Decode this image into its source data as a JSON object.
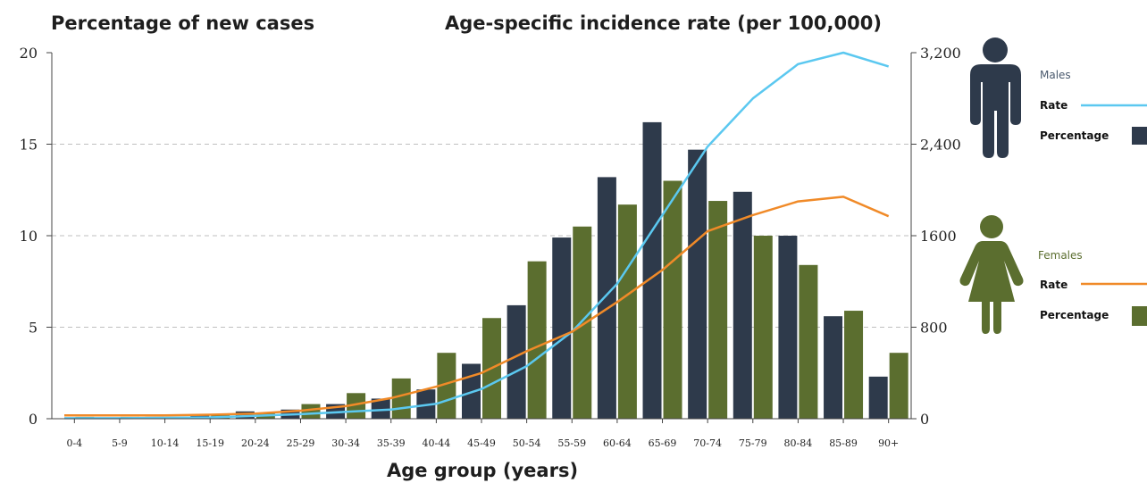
{
  "chart_data": {
    "type": "bar",
    "title_left": "Percentage of new cases",
    "title_right": "Age-specific incidence rate (per 100,000)",
    "xlabel": "Age group (years)",
    "categories": [
      "0-4",
      "5-9",
      "10-14",
      "15-19",
      "20-24",
      "25-29",
      "30-34",
      "35-39",
      "40-44",
      "45-49",
      "50-54",
      "55-59",
      "60-64",
      "65-69",
      "70-74",
      "75-79",
      "80-84",
      "85-89",
      "90+"
    ],
    "y_left": {
      "ylim": [
        0,
        20
      ],
      "ticks": [
        "0",
        "5",
        "10",
        "15",
        "20"
      ]
    },
    "y_right": {
      "ylim": [
        0,
        3200
      ],
      "ticks": [
        "0",
        "800",
        "1600",
        "2,400",
        "3,200"
      ]
    },
    "grid": "dashed horizontal",
    "bars": [
      {
        "group": "Males",
        "legend": "Percentage",
        "color": "#2e3a4b",
        "values": [
          0.0,
          0.0,
          0.1,
          0.2,
          0.4,
          0.5,
          0.8,
          1.1,
          1.6,
          3.0,
          6.2,
          9.9,
          13.2,
          16.2,
          14.7,
          12.4,
          10.0,
          5.6,
          2.3
        ]
      },
      {
        "group": "Females",
        "legend": "Percentage",
        "color": "#5b6e2f",
        "values": [
          0.1,
          0.1,
          0.1,
          0.2,
          0.3,
          0.8,
          1.4,
          2.2,
          3.6,
          5.5,
          8.6,
          10.5,
          11.7,
          13.0,
          11.9,
          10.0,
          8.4,
          5.9,
          3.6
        ]
      }
    ],
    "lines": [
      {
        "group": "Males",
        "legend": "Rate",
        "color": "#5bc8f0",
        "values": [
          5,
          5,
          8,
          12,
          25,
          40,
          60,
          80,
          130,
          260,
          460,
          760,
          1180,
          1780,
          2380,
          2800,
          3100,
          3200,
          3080
        ]
      },
      {
        "group": "Females",
        "legend": "Rate",
        "color": "#f08a28",
        "values": [
          30,
          30,
          30,
          35,
          45,
          70,
          110,
          180,
          280,
          400,
          590,
          760,
          1020,
          1300,
          1640,
          1780,
          1900,
          1940,
          1770
        ]
      }
    ]
  },
  "legend": {
    "males": {
      "label": "Males",
      "rate_label": "Rate",
      "pct_label": "Percentage",
      "icon": "male-person-icon",
      "label_color": "#4a5a6e",
      "icon_color": "#2e3a4b"
    },
    "females": {
      "label": "Females",
      "rate_label": "Rate",
      "pct_label": "Percentage",
      "icon": "female-person-icon",
      "label_color": "#5b6e2f",
      "icon_color": "#5b6e2f"
    }
  }
}
